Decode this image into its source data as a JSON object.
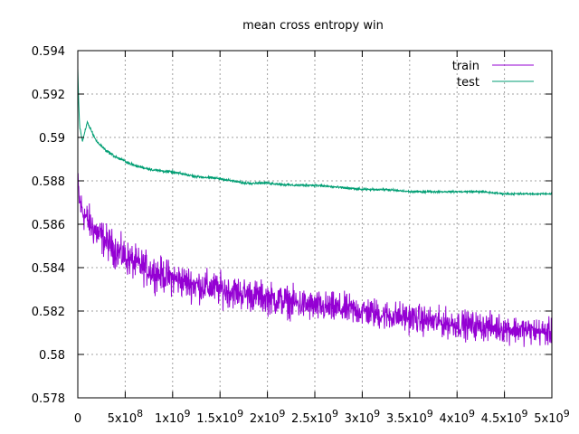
{
  "chart_data": {
    "type": "line",
    "title": "mean cross entropy win",
    "xlabel": "",
    "ylabel": "",
    "xlim": [
      0,
      5000000000
    ],
    "ylim": [
      0.578,
      0.594
    ],
    "grid": true,
    "legend_position": "top-right",
    "x_ticks": [
      {
        "value": 0,
        "label": "0"
      },
      {
        "value": 500000000,
        "base": "5x10",
        "exp": "8"
      },
      {
        "value": 1000000000,
        "base": "1x10",
        "exp": "9"
      },
      {
        "value": 1500000000,
        "base": "1.5x10",
        "exp": "9"
      },
      {
        "value": 2000000000,
        "base": "2x10",
        "exp": "9"
      },
      {
        "value": 2500000000,
        "base": "2.5x10",
        "exp": "9"
      },
      {
        "value": 3000000000,
        "base": "3x10",
        "exp": "9"
      },
      {
        "value": 3500000000,
        "base": "3.5x10",
        "exp": "9"
      },
      {
        "value": 4000000000,
        "base": "4x10",
        "exp": "9"
      },
      {
        "value": 4500000000,
        "base": "4.5x10",
        "exp": "9"
      },
      {
        "value": 5000000000,
        "base": "5x10",
        "exp": "9"
      }
    ],
    "y_ticks": [
      {
        "value": 0.578,
        "label": "0.578"
      },
      {
        "value": 0.58,
        "label": "0.58"
      },
      {
        "value": 0.582,
        "label": "0.582"
      },
      {
        "value": 0.584,
        "label": "0.584"
      },
      {
        "value": 0.586,
        "label": "0.586"
      },
      {
        "value": 0.588,
        "label": "0.588"
      },
      {
        "value": 0.59,
        "label": "0.59"
      },
      {
        "value": 0.592,
        "label": "0.592"
      },
      {
        "value": 0.594,
        "label": "0.594"
      }
    ],
    "series": [
      {
        "name": "train",
        "color": "#9400d3",
        "x": [
          0,
          20000000,
          50000000,
          100000000,
          200000000,
          300000000,
          400000000,
          500000000,
          600000000,
          800000000,
          1000000000,
          1250000000,
          1500000000,
          1750000000,
          2000000000,
          2250000000,
          2500000000,
          2750000000,
          3000000000,
          3250000000,
          3500000000,
          3750000000,
          4000000000,
          4250000000,
          4500000000,
          4750000000,
          5000000000
        ],
        "values": [
          0.5878,
          0.587,
          0.5866,
          0.5862,
          0.5856,
          0.5852,
          0.5848,
          0.5845,
          0.5842,
          0.5838,
          0.5835,
          0.5832,
          0.583,
          0.5828,
          0.5826,
          0.5824,
          0.5822,
          0.5821,
          0.582,
          0.5818,
          0.5817,
          0.5815,
          0.5814,
          0.5813,
          0.5812,
          0.5811,
          0.581
        ],
        "spread_near": 0.0012,
        "spread_far": 0.0009
      },
      {
        "name": "test",
        "color": "#009e73",
        "x": [
          0,
          10000000,
          20000000,
          50000000,
          100000000,
          200000000,
          300000000,
          400000000,
          500000000,
          600000000,
          700000000,
          800000000,
          1000000000,
          1250000000,
          1500000000,
          1750000000,
          2000000000,
          2250000000,
          2500000000,
          2750000000,
          3000000000,
          3250000000,
          3500000000,
          3750000000,
          4000000000,
          4250000000,
          4500000000,
          4750000000,
          5000000000
        ],
        "values": [
          0.5932,
          0.5915,
          0.5905,
          0.5898,
          0.5907,
          0.5898,
          0.5894,
          0.5891,
          0.5889,
          0.5887,
          0.5886,
          0.5885,
          0.5884,
          0.5882,
          0.5881,
          0.5879,
          0.5879,
          0.5878,
          0.5878,
          0.5877,
          0.5876,
          0.5876,
          0.5875,
          0.5875,
          0.5875,
          0.5875,
          0.5874,
          0.5874,
          0.5874
        ],
        "spread_near": 0.0001,
        "spread_far": 6e-05
      }
    ]
  }
}
